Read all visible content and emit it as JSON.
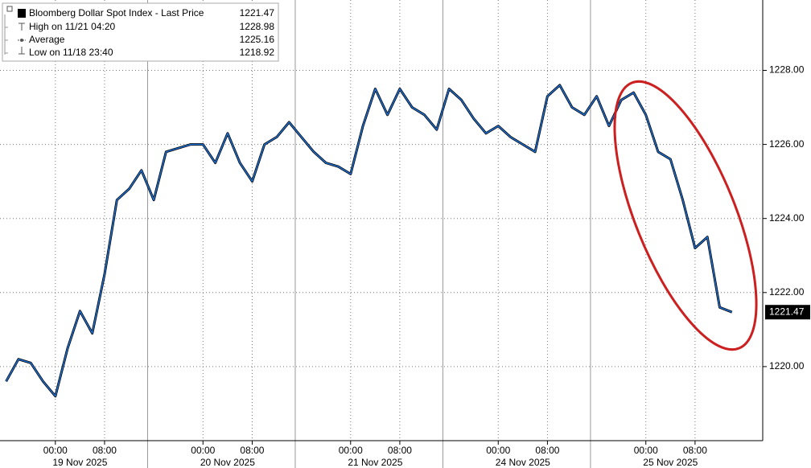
{
  "chart_data": {
    "type": "line",
    "legend_rows": [
      {
        "label": "Bloomberg Dollar Spot Index - Last Price",
        "value": 1221.47
      },
      {
        "label": "High on 11/21 04:20",
        "value": 1228.98
      },
      {
        "label": "Average",
        "value": 1225.16
      },
      {
        "label": "Low on 11/18 23:40",
        "value": 1218.92
      }
    ],
    "days": [
      "19 Nov 2025",
      "20 Nov 2025",
      "21 Nov 2025",
      "24 Nov 2025",
      "25 Nov 2025"
    ],
    "categories": [
      null,
      null,
      null,
      null,
      "00:00",
      null,
      null,
      null,
      "08:00",
      null,
      null,
      null,
      null,
      null,
      null,
      null,
      "00:00",
      null,
      null,
      null,
      "08:00",
      null,
      null,
      null,
      null,
      null,
      null,
      null,
      "00:00",
      null,
      null,
      null,
      "08:00",
      null,
      null,
      null,
      null,
      null,
      null,
      null,
      "00:00",
      null,
      null,
      null,
      "08:00",
      null,
      null,
      null,
      null,
      null,
      null,
      null,
      "00:00",
      null,
      null,
      null,
      "08:00",
      null,
      null,
      null,
      null,
      null
    ],
    "series": [
      {
        "name": "Bloomberg Dollar Spot Index",
        "color": "#1f6fd0",
        "values": [
          1219.6,
          1220.2,
          1220.1,
          1219.6,
          1219.2,
          1220.5,
          1221.5,
          1220.9,
          1222.5,
          1224.5,
          1224.8,
          1225.3,
          1224.5,
          1225.8,
          1225.9,
          1226.0,
          1226.0,
          1225.5,
          1226.3,
          1225.5,
          1225.0,
          1226.0,
          1226.2,
          1226.6,
          1226.2,
          1225.8,
          1225.5,
          1225.4,
          1225.2,
          1226.5,
          1227.5,
          1226.8,
          1227.5,
          1227.0,
          1226.8,
          1226.4,
          1227.5,
          1227.2,
          1226.7,
          1226.3,
          1226.5,
          1226.2,
          1226.0,
          1225.8,
          1227.3,
          1227.6,
          1227.0,
          1226.8,
          1227.3,
          1226.5,
          1227.2,
          1227.4,
          1226.8,
          1225.8,
          1225.6,
          1224.5,
          1223.2,
          1223.5,
          1221.6,
          1221.47,
          null,
          null
        ]
      }
    ],
    "ylim": [
      1218,
      1229.9
    ],
    "yticks": [
      {
        "value": 1220,
        "label": "1220.00"
      },
      {
        "value": 1222,
        "label": "1222.00"
      },
      {
        "value": 1224,
        "label": "1224.00"
      },
      {
        "value": 1226,
        "label": "1226.00"
      },
      {
        "value": 1228,
        "label": "1228.00"
      }
    ],
    "grid": true
  }
}
